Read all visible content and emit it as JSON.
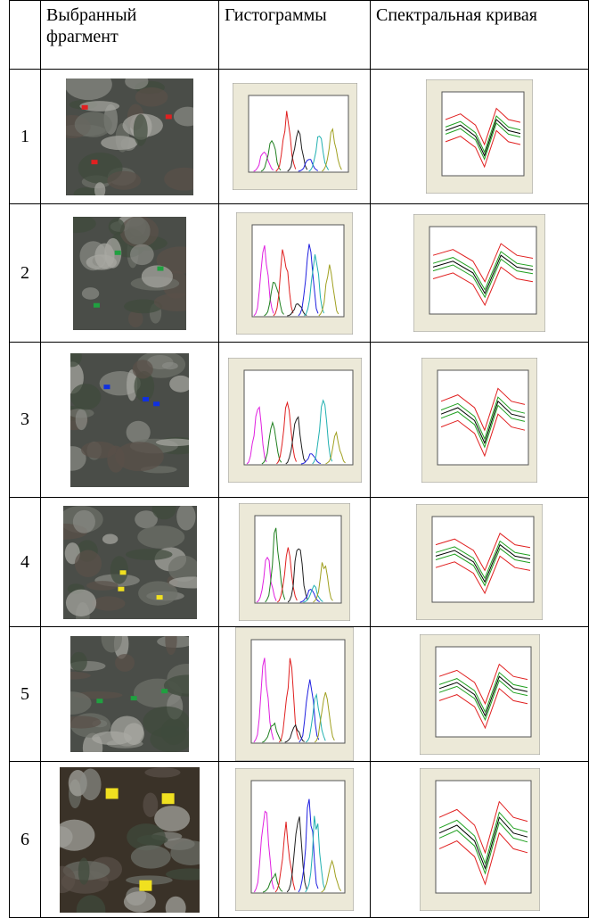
{
  "table": {
    "header": [
      "Выбранный фрагмент",
      "Гистограммы",
      "Спектральная кривая"
    ],
    "rows": [
      "1",
      "2",
      "3",
      "4",
      "5",
      "6"
    ]
  }
}
